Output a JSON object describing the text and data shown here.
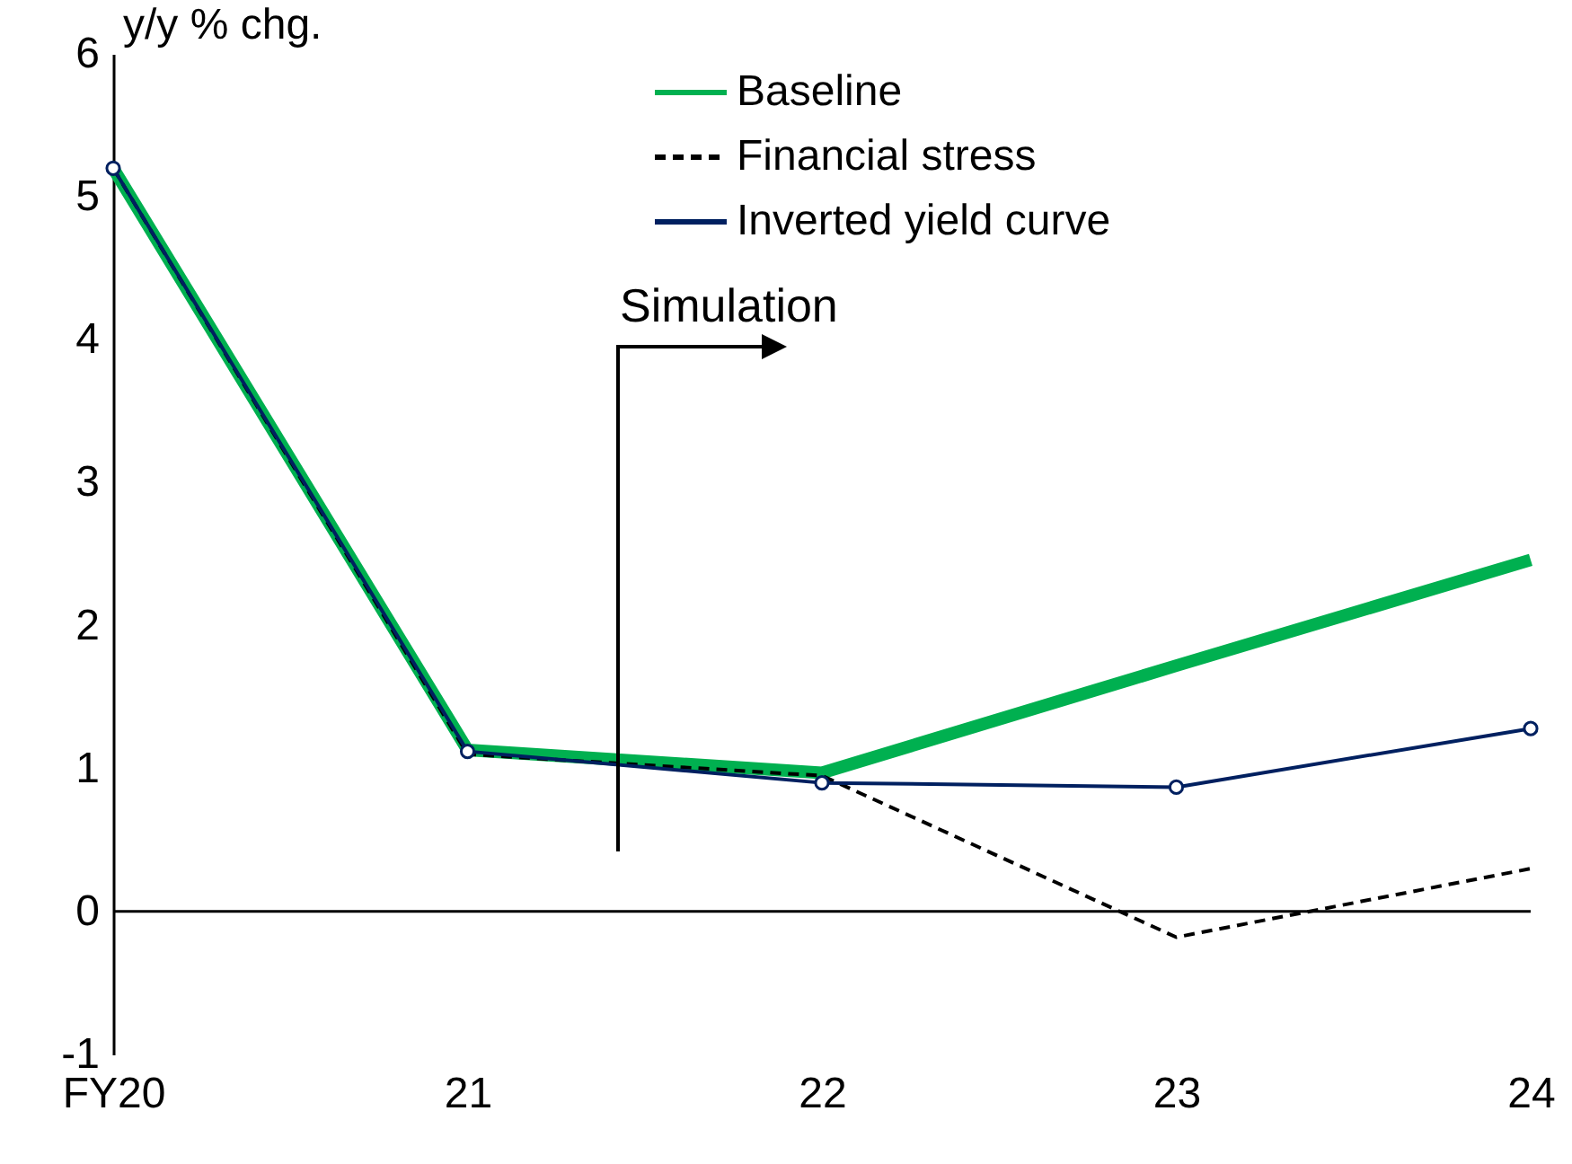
{
  "chart_data": {
    "type": "line",
    "ylabel": "y/y % chg.",
    "categories": [
      "FY20",
      "21",
      "22",
      "23",
      "24"
    ],
    "series": [
      {
        "name": "Baseline",
        "color": "#00b050",
        "line_style": "solid",
        "marker": "none",
        "values": [
          5.2,
          1.13,
          0.97,
          1.72,
          2.46
        ]
      },
      {
        "name": "Financial stress",
        "color": "#000000",
        "line_style": "dashed",
        "marker": "none",
        "values": [
          5.2,
          1.1,
          0.95,
          -0.18,
          0.3
        ]
      },
      {
        "name": "Inverted yield curve",
        "color": "#002060",
        "line_style": "solid",
        "marker": "circle",
        "values": [
          5.2,
          1.12,
          0.9,
          0.87,
          1.28
        ]
      }
    ],
    "ylim": [
      -1,
      6
    ],
    "yticks": [
      -1,
      0,
      1,
      2,
      3,
      4,
      5,
      6
    ],
    "grid": false,
    "legend": "top right",
    "ref_lines": [
      {
        "axis": "y",
        "value": 0,
        "color": "#000000"
      }
    ],
    "annotations": [
      "Simulation"
    ]
  }
}
